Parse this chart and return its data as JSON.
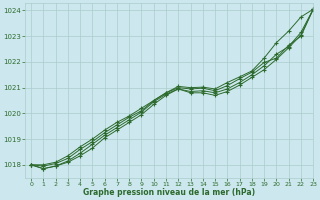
{
  "bg_color": "#cce8ee",
  "grid_color": "#aacccc",
  "line_color": "#2d6a2d",
  "marker_color": "#2d6a2d",
  "xlabel": "Graphe pression niveau de la mer (hPa)",
  "xlabel_color": "#2d6a2d",
  "ylabel_color": "#2d6a2d",
  "ylim": [
    1017.5,
    1024.3
  ],
  "xlim": [
    -0.5,
    23
  ],
  "yticks": [
    1018,
    1019,
    1020,
    1021,
    1022,
    1023,
    1024
  ],
  "xticks": [
    0,
    1,
    2,
    3,
    4,
    5,
    6,
    7,
    8,
    9,
    10,
    11,
    12,
    13,
    14,
    15,
    16,
    17,
    18,
    19,
    20,
    21,
    22,
    23
  ],
  "series": [
    [
      1018.0,
      1017.85,
      1017.95,
      1018.1,
      1018.35,
      1018.65,
      1019.05,
      1019.35,
      1019.65,
      1019.95,
      1020.35,
      1020.7,
      1020.95,
      1020.8,
      1020.8,
      1020.7,
      1020.85,
      1021.1,
      1021.4,
      1021.7,
      1022.1,
      1022.55,
      1023.05,
      1024.05
    ],
    [
      1018.0,
      1017.85,
      1017.95,
      1018.15,
      1018.45,
      1018.8,
      1019.15,
      1019.45,
      1019.75,
      1020.05,
      1020.45,
      1020.75,
      1020.95,
      1020.85,
      1020.88,
      1020.8,
      1020.95,
      1021.2,
      1021.5,
      1021.85,
      1022.3,
      1022.6,
      1023.15,
      1024.05
    ],
    [
      1018.0,
      1017.95,
      1018.05,
      1018.25,
      1018.6,
      1018.9,
      1019.25,
      1019.55,
      1019.85,
      1020.1,
      1020.5,
      1020.8,
      1021.0,
      1020.95,
      1020.98,
      1020.88,
      1021.08,
      1021.35,
      1021.6,
      1021.98,
      1022.15,
      1022.65,
      1023.0,
      1024.05
    ],
    [
      1018.0,
      1018.0,
      1018.1,
      1018.35,
      1018.7,
      1019.0,
      1019.35,
      1019.65,
      1019.9,
      1020.2,
      1020.5,
      1020.8,
      1021.05,
      1021.0,
      1021.02,
      1020.95,
      1021.2,
      1021.42,
      1021.65,
      1022.15,
      1022.75,
      1023.2,
      1023.75,
      1024.05
    ]
  ]
}
